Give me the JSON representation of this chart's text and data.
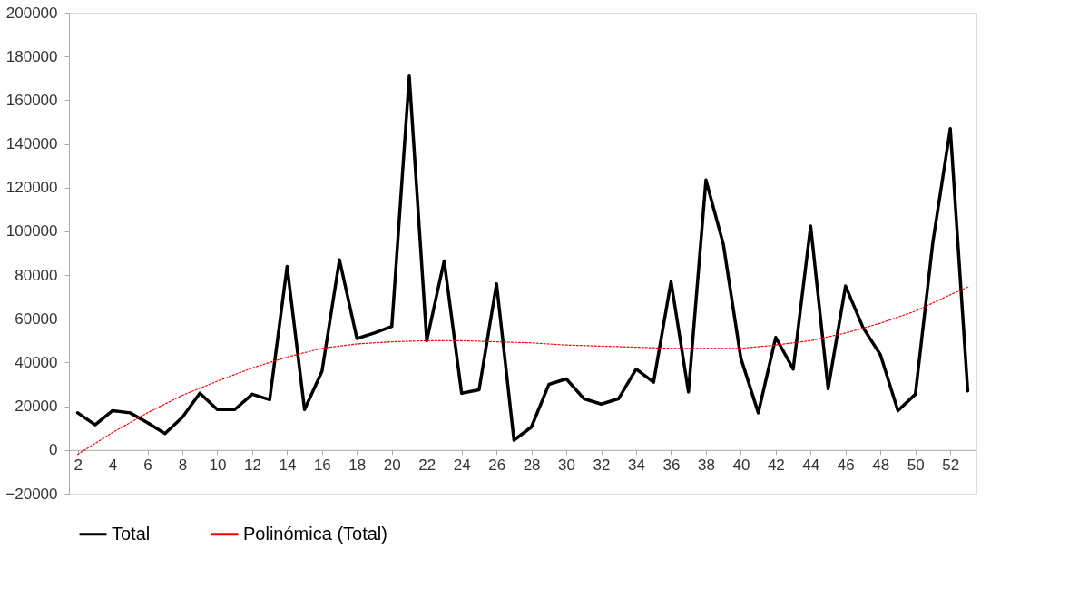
{
  "chart_data": {
    "type": "line",
    "x": [
      2,
      3,
      4,
      5,
      6,
      7,
      8,
      9,
      10,
      11,
      12,
      13,
      14,
      15,
      16,
      17,
      18,
      19,
      20,
      21,
      22,
      23,
      24,
      25,
      26,
      27,
      28,
      29,
      30,
      31,
      32,
      33,
      34,
      35,
      36,
      37,
      38,
      39,
      40,
      41,
      42,
      43,
      44,
      45,
      46,
      47,
      48,
      49,
      50,
      51,
      52,
      53
    ],
    "series": [
      {
        "name": "Total",
        "color": "#000000",
        "line_style": "solid",
        "values": [
          17000,
          11500,
          18000,
          17000,
          12500,
          7500,
          15000,
          26000,
          18500,
          18500,
          25500,
          23000,
          84000,
          18500,
          36000,
          87000,
          51000,
          53500,
          56500,
          171000,
          50000,
          86500,
          26000,
          27500,
          76000,
          4500,
          10500,
          30000,
          32500,
          23500,
          21000,
          23500,
          37000,
          31000,
          77000,
          26500,
          123500,
          94000,
          42000,
          17000,
          51500,
          37000,
          102500,
          28000,
          75000,
          56000,
          43500,
          18000,
          25500,
          95000,
          147000,
          27000
        ]
      },
      {
        "name": "Polinómica (Total)",
        "color": "#ff0000",
        "line_style": "dotted",
        "x": [
          2,
          4,
          6,
          8,
          10,
          12,
          14,
          16,
          18,
          20,
          22,
          24,
          26,
          28,
          30,
          32,
          34,
          36,
          38,
          40,
          42,
          44,
          46,
          48,
          50,
          52,
          53
        ],
        "values": [
          -2000,
          8000,
          17000,
          25000,
          31500,
          37500,
          42500,
          46500,
          48500,
          49500,
          50000,
          50000,
          49500,
          49000,
          48000,
          47500,
          47000,
          46500,
          46500,
          46500,
          48000,
          50000,
          53500,
          58000,
          63500,
          71000,
          74500
        ]
      }
    ],
    "xlim": [
      1.5,
      53.5
    ],
    "xticks": [
      2,
      4,
      6,
      8,
      10,
      12,
      14,
      16,
      18,
      20,
      22,
      24,
      26,
      28,
      30,
      32,
      34,
      36,
      38,
      40,
      42,
      44,
      46,
      48,
      50,
      52
    ],
    "ylim": [
      -20000,
      200000
    ],
    "yticks": [
      -20000,
      0,
      20000,
      40000,
      60000,
      80000,
      100000,
      120000,
      140000,
      160000,
      180000,
      200000
    ],
    "grid": false,
    "legend": "bottom",
    "marker": "none"
  }
}
